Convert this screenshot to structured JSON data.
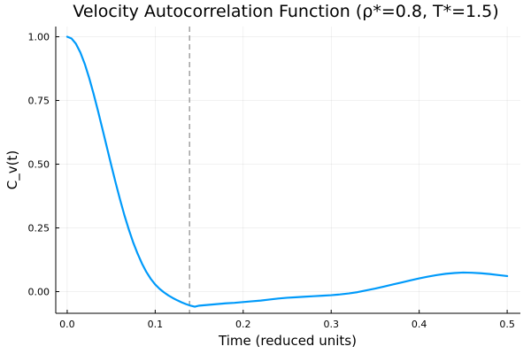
{
  "chart_data": {
    "type": "line",
    "title": "Velocity Autocorrelation Function (ρ*=0.8, T*=1.5)",
    "xlabel": "Time (reduced units)",
    "ylabel": "C_v(t)",
    "xlim": [
      -0.013,
      0.515
    ],
    "ylim": [
      -0.085,
      1.04
    ],
    "xticks": [
      0.0,
      0.1,
      0.2,
      0.3,
      0.4,
      0.5
    ],
    "xtick_labels": [
      "0.0",
      "0.1",
      "0.2",
      "0.3",
      "0.4",
      "0.5"
    ],
    "yticks": [
      0.0,
      0.25,
      0.5,
      0.75,
      1.0
    ],
    "ytick_labels": [
      "0.00",
      "0.25",
      "0.50",
      "0.75",
      "1.00"
    ],
    "grid": true,
    "legend": "none",
    "series": [
      {
        "color": "#009AFA",
        "x": [
          0.0,
          0.005,
          0.01,
          0.015,
          0.02,
          0.025,
          0.03,
          0.035,
          0.04,
          0.045,
          0.05,
          0.055,
          0.06,
          0.065,
          0.07,
          0.075,
          0.08,
          0.085,
          0.09,
          0.095,
          0.1,
          0.105,
          0.11,
          0.115,
          0.12,
          0.125,
          0.13,
          0.135,
          0.14,
          0.145,
          0.15,
          0.16,
          0.17,
          0.18,
          0.19,
          0.2,
          0.21,
          0.22,
          0.23,
          0.24,
          0.25,
          0.26,
          0.27,
          0.28,
          0.29,
          0.3,
          0.31,
          0.32,
          0.33,
          0.34,
          0.35,
          0.36,
          0.37,
          0.38,
          0.39,
          0.4,
          0.41,
          0.42,
          0.43,
          0.44,
          0.45,
          0.46,
          0.47,
          0.48,
          0.49,
          0.5
        ],
        "y": [
          1.0,
          0.993,
          0.972,
          0.938,
          0.893,
          0.838,
          0.776,
          0.709,
          0.639,
          0.568,
          0.497,
          0.428,
          0.362,
          0.3,
          0.244,
          0.193,
          0.149,
          0.11,
          0.077,
          0.05,
          0.028,
          0.011,
          -0.003,
          -0.015,
          -0.025,
          -0.034,
          -0.042,
          -0.049,
          -0.055,
          -0.059,
          -0.055,
          -0.052,
          -0.049,
          -0.046,
          -0.044,
          -0.041,
          -0.038,
          -0.035,
          -0.031,
          -0.027,
          -0.024,
          -0.022,
          -0.02,
          -0.018,
          -0.016,
          -0.014,
          -0.011,
          -0.007,
          -0.002,
          0.005,
          0.012,
          0.02,
          0.028,
          0.036,
          0.044,
          0.052,
          0.059,
          0.065,
          0.07,
          0.073,
          0.075,
          0.074,
          0.072,
          0.069,
          0.065,
          0.061
        ]
      }
    ],
    "reference_lines": [
      {
        "orientation": "vertical",
        "x": 0.139,
        "color": "#7f7f7f",
        "style": "dashed"
      }
    ]
  }
}
